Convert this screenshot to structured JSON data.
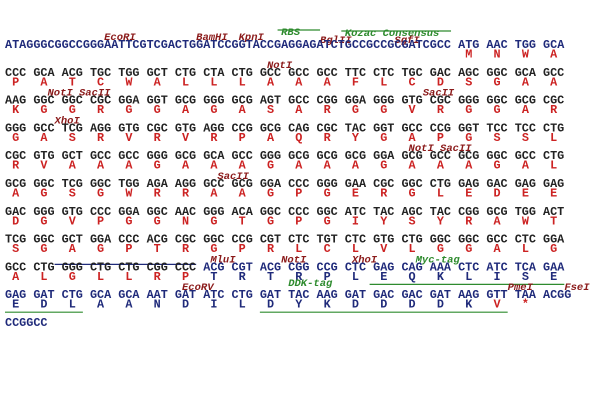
{
  "rows": [
    {
      "labels": [
        {
          "text": "EcoRI",
          "color": "#8b1a1a"
        },
        {
          "text": "BamHI",
          "color": "#8b1a1a"
        },
        {
          "text": "KpnI",
          "color": "#8b1a1a"
        },
        {
          "text": "RBS",
          "color": "#2e8b2e"
        },
        {
          "text": "BglII",
          "color": "#8b1a1a"
        },
        {
          "text": "Kozac Consensus",
          "color": "#2e8b2e"
        },
        {
          "text": "SgfI",
          "color": "#8b1a1a"
        }
      ],
      "seq": [
        {
          "text": "ATAGGGCGGCCGGGAATTCGTCGACTGGATCCGGTACCGAGGAGATCTGCCGCCGCGATCGCC",
          "color": "#1f2a7a"
        },
        {
          "text": "ATG AAC TGG GCA",
          "color": "#1f2a7a"
        }
      ],
      "aa": [
        {
          "letters": "MNWA",
          "color": "#cc2222"
        }
      ]
    },
    {
      "labels": [
        {
          "text": "NotI",
          "color": "#8b1a1a"
        }
      ],
      "seq": [
        {
          "text": "CCC GCA ACG TGC TGG GCT CTG CTA CTG GCC GCC GCC TTC CTC TGC GAC AGC GGC GCA GCC",
          "color": "#222222"
        }
      ],
      "aa": [
        {
          "letters": "PATCWALLLAAAFLCDSGAA",
          "color": "#cc2222"
        }
      ]
    },
    {
      "labels": [
        {
          "text": "NotI SacII",
          "color": "#8b1a1a"
        },
        {
          "text": "SacII",
          "color": "#8b1a1a"
        }
      ],
      "seq": [
        {
          "text": "AAG GGC GGC CGC GGA GGT GCG GGG GCG AGT GCC CGG GGA GGG GTG CGC GGG GGC GCG CGC",
          "color": "#222222"
        }
      ],
      "aa": [
        {
          "letters": "KGGRGGAGASARGGVRGGAR",
          "color": "#cc2222"
        }
      ]
    },
    {
      "labels": [
        {
          "text": "XhoI",
          "color": "#8b1a1a"
        }
      ],
      "seq": [
        {
          "text": "GGG GCC TCG AGG GTG CGC GTG AGG CCG GCG CAG CGC TAC GGT GCC CCG GGT TCC TCC CTG",
          "color": "#222222"
        }
      ],
      "aa": [
        {
          "letters": "GASRVRVRPAQRYGAPGSSL",
          "color": "#cc2222"
        }
      ]
    },
    {
      "labels": [
        {
          "text": "NotI SacII",
          "color": "#8b1a1a"
        }
      ],
      "seq": [
        {
          "text": "CGC GTG GCT GCC GCC GGG GCG GCA GCC GGG GCG GCG GCG GGA GCG GCC GCG GGC GCC CTG",
          "color": "#222222"
        }
      ],
      "aa": [
        {
          "letters": "RVAAAGAAAGAAAGAAAGAL",
          "color": "#cc2222"
        }
      ]
    },
    {
      "labels": [
        {
          "text": "SacII",
          "color": "#8b1a1a"
        }
      ],
      "seq": [
        {
          "text": "GCG GGC TCG GGC TGG AGA AGG GCC GCG GGA CCC GGG GAA CGC GGC CTG GAG GAC GAG GAG",
          "color": "#222222"
        }
      ],
      "aa": [
        {
          "letters": "AGSGWRRAAGPGERGLEDEE",
          "color": "#cc2222"
        }
      ]
    },
    {
      "labels": [],
      "seq": [
        {
          "text": "GAC GGG GTG CCC GGA GGC AAC GGG ACA GGC CCC GGC ATC TAC AGC TAC CGG GCG TGG ACT",
          "color": "#222222"
        }
      ],
      "aa": [
        {
          "letters": "DGVPGGNGTGPGIYSYRAWT",
          "color": "#cc2222"
        }
      ]
    },
    {
      "labels": [],
      "seq": [
        {
          "text": "TCG GGC GCT GGA CCC ACG CGC GGC CCG CGT CTC TGT CTC GTG CTG GGC GGC GCC CTC GGA",
          "color": "#222222"
        }
      ],
      "aa": [
        {
          "letters": "SGAGPTRGPRLCLVLGGALG",
          "color": "#cc2222"
        }
      ]
    },
    {
      "labels": [
        {
          "text": "MluI",
          "color": "#8b1a1a"
        },
        {
          "text": "NotI",
          "color": "#8b1a1a"
        },
        {
          "text": "XhoI",
          "color": "#8b1a1a"
        },
        {
          "text": "Myc-tag",
          "color": "#2e8b2e"
        }
      ],
      "seq": [
        {
          "text": "GCC CTG GGG CTG CTG CGG CCC",
          "color": "#222222"
        },
        {
          "text": "ACG CGT ACG CGG CCG CTC GAG CAG AAA CTC ATC TCA GAA",
          "color": "#1f2a7a"
        }
      ],
      "aa": [
        {
          "letters": "ALGLLRP",
          "color": "#cc2222"
        },
        {
          "letters": "TRTRPLEQKLISE",
          "color": "#1f2a7a"
        }
      ]
    },
    {
      "labels": [
        {
          "text": "EcoRV",
          "color": "#8b1a1a"
        },
        {
          "text": "DDK-tag",
          "color": "#2e8b2e"
        },
        {
          "text": "PmeI",
          "color": "#8b1a1a"
        },
        {
          "text": "FseI",
          "color": "#8b1a1a"
        }
      ],
      "seq": [
        {
          "text": "GAG GAT CTG GCA GCA AAT GAT ATC CTG GAT TAC AAG GAT GAC GAC GAT AAG GTT TAA ACGG",
          "color": "#1f2a7a"
        }
      ],
      "aa": [
        {
          "letters": "EDLAANDILDYKDDDDK",
          "color": "#1f2a7a"
        },
        {
          "letters": "V*",
          "color": "#cc2222"
        }
      ]
    },
    {
      "labels": [],
      "seq": [
        {
          "text": "CCGGCC",
          "color": "#1f2a7a"
        }
      ],
      "aa": []
    }
  ]
}
